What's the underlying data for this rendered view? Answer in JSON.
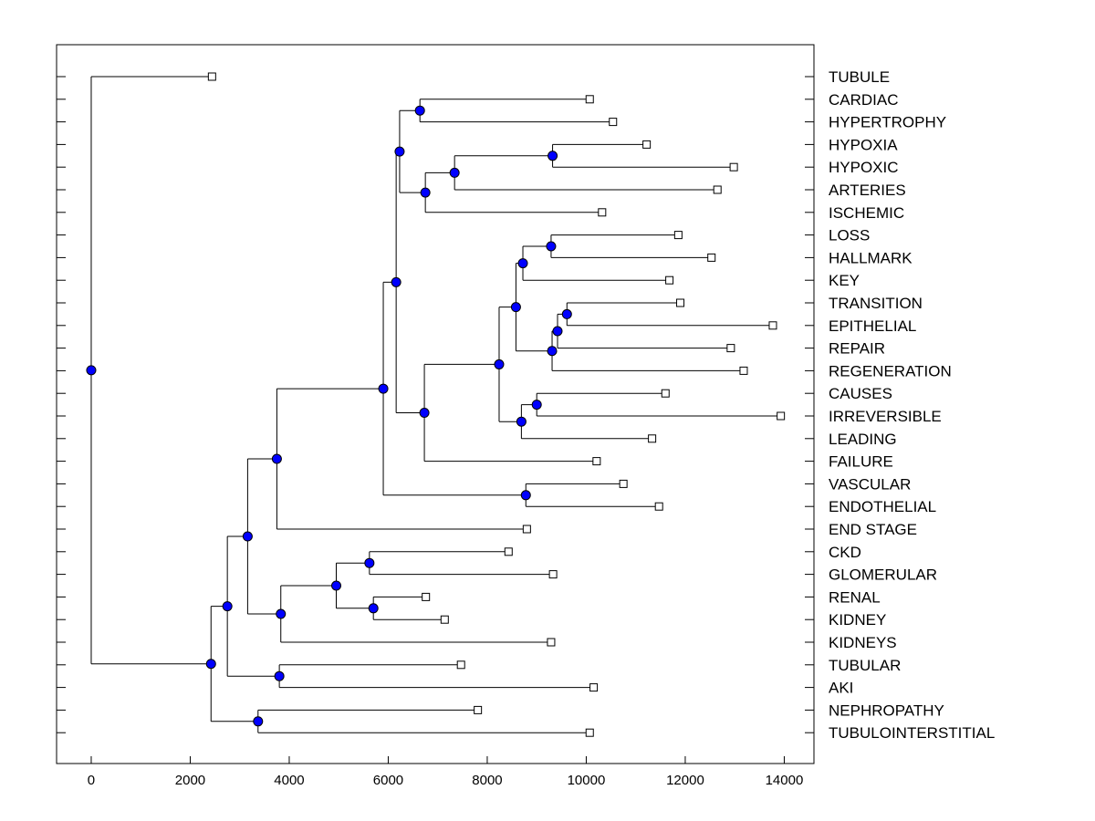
{
  "chart_data": {
    "type": "dendrogram",
    "title": "",
    "xlabel": "",
    "ylabel": "",
    "xlim": [
      -700,
      14600
    ],
    "x_ticks": [
      0,
      2000,
      4000,
      6000,
      8000,
      10000,
      12000,
      14000
    ],
    "x_tick_labels": [
      "0",
      "2000",
      "4000",
      "6000",
      "8000",
      "10000",
      "12000",
      "14000"
    ],
    "leaves": [
      {
        "label": "TUBULE",
        "x": 2440
      },
      {
        "label": "CARDIAC",
        "x": 10070
      },
      {
        "label": "HYPERTROPHY",
        "x": 10540
      },
      {
        "label": "HYPOXIA",
        "x": 11220
      },
      {
        "label": "HYPOXIC",
        "x": 12980
      },
      {
        "label": "ARTERIES",
        "x": 12650
      },
      {
        "label": "ISCHEMIC",
        "x": 10320
      },
      {
        "label": "LOSS",
        "x": 11860
      },
      {
        "label": "HALLMARK",
        "x": 12530
      },
      {
        "label": "KEY",
        "x": 11680
      },
      {
        "label": "TRANSITION",
        "x": 11900
      },
      {
        "label": "EPITHELIAL",
        "x": 13770
      },
      {
        "label": "REPAIR",
        "x": 12920
      },
      {
        "label": "REGENERATION",
        "x": 13180
      },
      {
        "label": "CAUSES",
        "x": 11600
      },
      {
        "label": "IRREVERSIBLE",
        "x": 13930
      },
      {
        "label": "LEADING",
        "x": 11330
      },
      {
        "label": "FAILURE",
        "x": 10210
      },
      {
        "label": "VASCULAR",
        "x": 10750
      },
      {
        "label": "ENDOTHELIAL",
        "x": 11470
      },
      {
        "label": "END STAGE",
        "x": 8800
      },
      {
        "label": "CKD",
        "x": 8430
      },
      {
        "label": "GLOMERULAR",
        "x": 9330
      },
      {
        "label": "RENAL",
        "x": 6760
      },
      {
        "label": "KIDNEY",
        "x": 7140
      },
      {
        "label": "KIDNEYS",
        "x": 9290
      },
      {
        "label": "TUBULAR",
        "x": 7470
      },
      {
        "label": "AKI",
        "x": 10150
      },
      {
        "label": "NEPHROPATHY",
        "x": 7810
      },
      {
        "label": "TUBULOINTERSTITIAL",
        "x": 10070
      }
    ],
    "nodes": [
      {
        "id": "n_card_hyp",
        "x": 6640,
        "children": [
          "L1",
          "L2"
        ]
      },
      {
        "id": "n_hypoxia",
        "x": 9320,
        "children": [
          "L3",
          "L4"
        ]
      },
      {
        "id": "n_hyp_art",
        "x": 7340,
        "children": [
          "n_hypoxia",
          "L5"
        ]
      },
      {
        "id": "n_hyp_isch",
        "x": 6750,
        "children": [
          "n_hyp_art",
          "L6"
        ]
      },
      {
        "id": "n_cardio",
        "x": 6230,
        "children": [
          "n_card_hyp",
          "n_hyp_isch"
        ]
      },
      {
        "id": "n_loss",
        "x": 9290,
        "children": [
          "L7",
          "L8"
        ]
      },
      {
        "id": "n_key",
        "x": 8720,
        "children": [
          "n_loss",
          "L9"
        ]
      },
      {
        "id": "n_trans",
        "x": 9610,
        "children": [
          "L10",
          "L11"
        ]
      },
      {
        "id": "n_repair",
        "x": 9420,
        "children": [
          "n_trans",
          "L12"
        ]
      },
      {
        "id": "n_regen",
        "x": 9310,
        "children": [
          "n_repair",
          "L13"
        ]
      },
      {
        "id": "n_keyregen",
        "x": 8580,
        "children": [
          "n_key",
          "n_regen"
        ]
      },
      {
        "id": "n_causes",
        "x": 9000,
        "children": [
          "L14",
          "L15"
        ]
      },
      {
        "id": "n_leading",
        "x": 8690,
        "children": [
          "n_causes",
          "L16"
        ]
      },
      {
        "id": "n_epi",
        "x": 8240,
        "children": [
          "n_keyregen",
          "n_leading"
        ]
      },
      {
        "id": "n_failure",
        "x": 6730,
        "children": [
          "n_epi",
          "L17"
        ]
      },
      {
        "id": "n_big",
        "x": 6160,
        "children": [
          "n_cardio",
          "n_failure"
        ]
      },
      {
        "id": "n_vasc",
        "x": 8780,
        "children": [
          "L18",
          "L19"
        ]
      },
      {
        "id": "n_bigvasc",
        "x": 5900,
        "children": [
          "n_big",
          "n_vasc"
        ]
      },
      {
        "id": "n_endstage",
        "x": 3750,
        "children": [
          "n_bigvasc",
          "L20"
        ]
      },
      {
        "id": "n_ckd",
        "x": 5620,
        "children": [
          "L21",
          "L22"
        ]
      },
      {
        "id": "n_renal",
        "x": 5700,
        "children": [
          "L23",
          "L24"
        ]
      },
      {
        "id": "n_ckdrenal",
        "x": 4950,
        "children": [
          "n_ckd",
          "n_renal"
        ]
      },
      {
        "id": "n_kidneys",
        "x": 3830,
        "children": [
          "n_ckdrenal",
          "L25"
        ]
      },
      {
        "id": "n_kid_end",
        "x": 3160,
        "children": [
          "n_endstage",
          "n_kidneys"
        ]
      },
      {
        "id": "n_aki",
        "x": 3800,
        "children": [
          "L26",
          "L27"
        ]
      },
      {
        "id": "n_kid_aki",
        "x": 2750,
        "children": [
          "n_kid_end",
          "n_aki"
        ]
      },
      {
        "id": "n_nephro",
        "x": 3370,
        "children": [
          "L28",
          "L29"
        ]
      },
      {
        "id": "n_kid_neph",
        "x": 2420,
        "children": [
          "n_kid_aki",
          "n_nephro"
        ]
      },
      {
        "id": "n_root",
        "x": 0,
        "children": [
          "L0",
          "n_kid_neph"
        ]
      }
    ],
    "grid": false,
    "node_marker_color": "#0000ff",
    "leaf_marker_color": "#ffffff",
    "line_color": "#000000"
  }
}
